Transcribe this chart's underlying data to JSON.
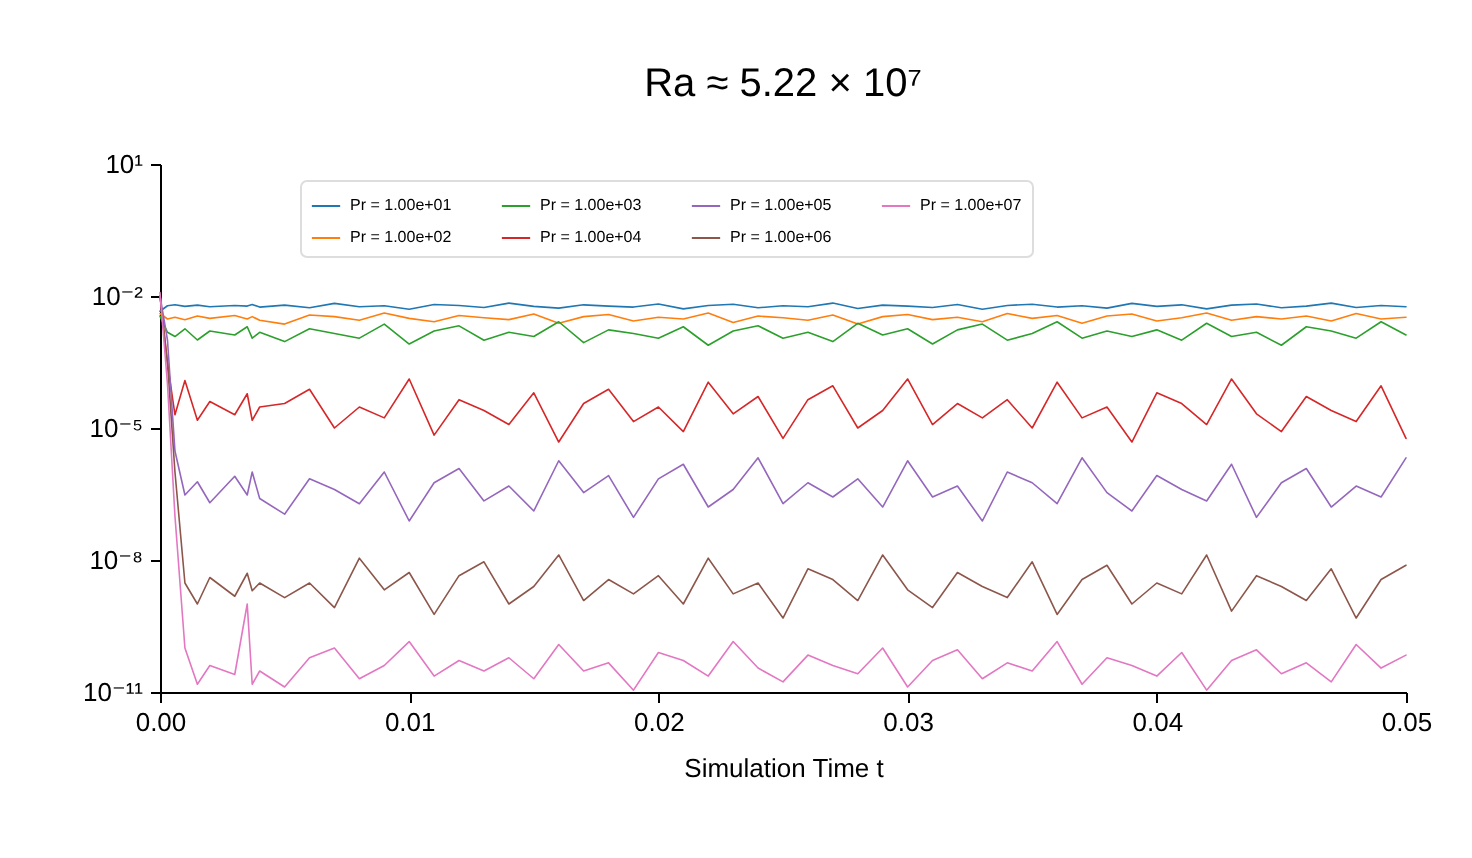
{
  "chart_data": {
    "type": "line",
    "title": "Ra ≈ 5.22 × 10⁷",
    "xlabel": "Simulation Time t",
    "log": "y",
    "legend": "top",
    "grid": false,
    "line_style": "solid",
    "marker": "none",
    "xlim": [
      0,
      0.05
    ],
    "xticks": [
      {
        "value": 0,
        "label": "0.00"
      },
      {
        "value": 0.01,
        "label": "0.01"
      },
      {
        "value": 0.02,
        "label": "0.02"
      },
      {
        "value": 0.03,
        "label": "0.03"
      },
      {
        "value": 0.04,
        "label": "0.04"
      },
      {
        "value": 0.05,
        "label": "0.05"
      }
    ],
    "ylim": [
      1e-11,
      10
    ],
    "yticks": [
      {
        "value": 10,
        "label": "10¹"
      },
      {
        "value": 0.01,
        "label": "10⁻²"
      },
      {
        "value": 1e-05,
        "label": "10⁻⁵"
      },
      {
        "value": 1e-08,
        "label": "10⁻⁸"
      },
      {
        "value": 1e-11,
        "label": "10⁻¹¹"
      }
    ],
    "x": [
      0,
      0.0003,
      0.0006,
      0.001,
      0.0015,
      0.002,
      0.003,
      0.0035,
      0.0037,
      0.004,
      0.005,
      0.006,
      0.007,
      0.008,
      0.009,
      0.01,
      0.011,
      0.012,
      0.013,
      0.014,
      0.015,
      0.016,
      0.017,
      0.018,
      0.019,
      0.02,
      0.021,
      0.022,
      0.023,
      0.024,
      0.025,
      0.026,
      0.027,
      0.028,
      0.029,
      0.03,
      0.031,
      0.032,
      0.033,
      0.034,
      0.035,
      0.036,
      0.037,
      0.038,
      0.039,
      0.04,
      0.041,
      0.042,
      0.043,
      0.044,
      0.045,
      0.046,
      0.047,
      0.048,
      0.049,
      0.05
    ],
    "series": [
      {
        "name": "Pr = 1.00e+01",
        "color": "#1f77b4",
        "values": [
          0.0045,
          0.006,
          0.0063,
          0.0058,
          0.0062,
          0.0057,
          0.0061,
          0.0059,
          0.0064,
          0.0056,
          0.0062,
          0.0054,
          0.0068,
          0.0057,
          0.006,
          0.005,
          0.0064,
          0.0061,
          0.0055,
          0.0069,
          0.0058,
          0.0053,
          0.0063,
          0.0059,
          0.0056,
          0.0066,
          0.0051,
          0.0061,
          0.0065,
          0.0054,
          0.006,
          0.0057,
          0.0069,
          0.0052,
          0.0062,
          0.0059,
          0.0055,
          0.0064,
          0.005,
          0.0061,
          0.0065,
          0.0056,
          0.006,
          0.0053,
          0.0068,
          0.0058,
          0.0063,
          0.0051,
          0.0062,
          0.0066,
          0.0054,
          0.0059,
          0.0069,
          0.0055,
          0.0061,
          0.0057
        ]
      },
      {
        "name": "Pr = 1.00e+02",
        "color": "#ff7f0e",
        "values": [
          0.004,
          0.003,
          0.0033,
          0.0029,
          0.0035,
          0.0031,
          0.0036,
          0.003,
          0.0034,
          0.0028,
          0.0023,
          0.0037,
          0.0034,
          0.0028,
          0.0041,
          0.0031,
          0.0026,
          0.0036,
          0.0032,
          0.0029,
          0.0039,
          0.0024,
          0.0034,
          0.0038,
          0.0027,
          0.0033,
          0.003,
          0.0041,
          0.0025,
          0.0035,
          0.0032,
          0.0028,
          0.0037,
          0.0023,
          0.0034,
          0.0038,
          0.0029,
          0.0033,
          0.0026,
          0.004,
          0.0031,
          0.0036,
          0.0024,
          0.0035,
          0.0039,
          0.0027,
          0.0032,
          0.0041,
          0.0028,
          0.0034,
          0.003,
          0.0035,
          0.0027,
          0.004,
          0.003,
          0.0033
        ]
      },
      {
        "name": "Pr = 1.00e+03",
        "color": "#2ca02c",
        "values": [
          0.0035,
          0.0015,
          0.0012,
          0.0018,
          0.001,
          0.0016,
          0.0013,
          0.002,
          0.0011,
          0.0015,
          0.00092,
          0.0018,
          0.0014,
          0.0011,
          0.0023,
          0.00081,
          0.0016,
          0.0021,
          0.00099,
          0.0015,
          0.0012,
          0.0026,
          0.00087,
          0.0017,
          0.0014,
          0.0011,
          0.002,
          0.00076,
          0.0016,
          0.0021,
          0.0011,
          0.0015,
          0.00092,
          0.0024,
          0.0013,
          0.0018,
          0.00081,
          0.0017,
          0.0023,
          0.00099,
          0.0014,
          0.0026,
          0.0011,
          0.0016,
          0.0012,
          0.0017,
          0.00099,
          0.0024,
          0.0012,
          0.0015,
          0.00076,
          0.002,
          0.0016,
          0.0011,
          0.0026,
          0.0013
        ]
      },
      {
        "name": "Pr = 1.00e+04",
        "color": "#d62728",
        "values": [
          0.01,
          0.0003,
          2e-05,
          0.00012,
          1.5e-05,
          4e-05,
          2e-05,
          6e-05,
          1.5e-05,
          3e-05,
          3.6e-05,
          7.6e-05,
          1e-05,
          3e-05,
          1.7e-05,
          0.00013,
          6.9e-06,
          4.4e-05,
          2.5e-05,
          1.2e-05,
          6.3e-05,
          4.8e-06,
          3.6e-05,
          7.6e-05,
          1.4e-05,
          3e-05,
          8.3e-06,
          0.00011,
          2.1e-05,
          5.2e-05,
          5.8e-06,
          4.4e-05,
          9.1e-05,
          1e-05,
          2.5e-05,
          0.00013,
          1.2e-05,
          3.6e-05,
          1.7e-05,
          4.4e-05,
          1e-05,
          0.00011,
          1.7e-05,
          3e-05,
          4.8e-06,
          6.3e-05,
          3.6e-05,
          1.2e-05,
          0.00013,
          2.1e-05,
          8.3e-06,
          5.2e-05,
          2.5e-05,
          1.4e-05,
          9.1e-05,
          5.8e-06
        ]
      },
      {
        "name": "Pr = 1.00e+05",
        "color": "#9467bd",
        "values": [
          0.01,
          0.001,
          3e-06,
          3e-07,
          6e-07,
          2e-07,
          8e-07,
          3e-07,
          1e-06,
          2.5e-07,
          1.1e-07,
          7e-07,
          4e-07,
          1.9e-07,
          1e-06,
          7.7e-08,
          5.7e-07,
          1.2e-06,
          2.2e-07,
          4.8e-07,
          1.3e-07,
          1.8e-06,
          3.4e-07,
          8.3e-07,
          9.3e-08,
          7e-07,
          1.5e-06,
          1.6e-07,
          4e-07,
          2.1e-06,
          1.9e-07,
          5.7e-07,
          2.7e-07,
          7e-07,
          1.6e-07,
          1.8e-06,
          2.7e-07,
          4.8e-07,
          7.7e-08,
          1e-06,
          5.7e-07,
          1.9e-07,
          2.1e-06,
          3.4e-07,
          1.3e-07,
          8.3e-07,
          4e-07,
          2.2e-07,
          1.5e-06,
          9.3e-08,
          5.7e-07,
          1.2e-06,
          1.6e-07,
          4.8e-07,
          2.7e-07,
          2.1e-06
        ]
      },
      {
        "name": "Pr = 1.00e+06",
        "color": "#8c564b",
        "values": [
          0.01,
          0.0003,
          1e-06,
          3e-09,
          1e-09,
          4e-09,
          1.5e-09,
          5e-09,
          2e-09,
          3e-09,
          1.4e-09,
          3e-09,
          8.3e-10,
          1.1e-08,
          2.1e-09,
          5.2e-09,
          5.8e-10,
          4.4e-09,
          9.1e-09,
          1e-09,
          2.5e-09,
          1.3e-08,
          1.2e-09,
          3.6e-09,
          1.7e-09,
          4.4e-09,
          1e-09,
          1.1e-08,
          1.7e-09,
          3e-09,
          4.8e-10,
          6.3e-09,
          3.6e-09,
          1.2e-09,
          1.3e-08,
          2.1e-09,
          8.3e-10,
          5.2e-09,
          2.5e-09,
          1.4e-09,
          9.1e-09,
          5.8e-10,
          3.6e-09,
          7.6e-09,
          1e-09,
          3e-09,
          1.7e-09,
          1.3e-08,
          6.9e-10,
          4.4e-09,
          2.5e-09,
          1.2e-09,
          6.3e-09,
          4.8e-10,
          3.6e-09,
          7.6e-09
        ]
      },
      {
        "name": "Pr = 1.00e+07",
        "color": "#e377c2",
        "values": [
          0.012,
          0.0001,
          1e-07,
          1e-10,
          1.5e-11,
          4e-11,
          2.5e-11,
          1e-09,
          1.5e-11,
          3e-11,
          1.3e-11,
          6e-11,
          1e-10,
          2e-11,
          4e-11,
          1.4e-10,
          2.3e-11,
          5.2e-11,
          3e-11,
          6e-11,
          2e-11,
          1.2e-10,
          3e-11,
          4.6e-11,
          1.1e-11,
          7.9e-11,
          5.2e-11,
          2.3e-11,
          1.4e-10,
          3.5e-11,
          1.7e-11,
          6.9e-11,
          4e-11,
          2.6e-11,
          1e-10,
          1.3e-11,
          5.2e-11,
          9.1e-11,
          2e-11,
          4.6e-11,
          3e-11,
          1.4e-10,
          1.5e-11,
          6e-11,
          4e-11,
          2.3e-11,
          7.9e-11,
          1.1e-11,
          5.2e-11,
          9.1e-11,
          2.6e-11,
          4.6e-11,
          1.7e-11,
          1.2e-10,
          3.5e-11,
          6.9e-11
        ]
      }
    ]
  }
}
